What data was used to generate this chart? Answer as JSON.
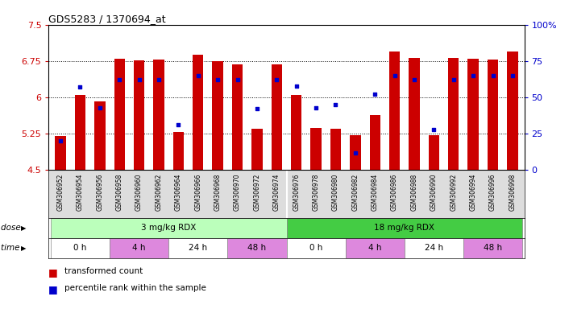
{
  "title": "GDS5283 / 1370694_at",
  "samples": [
    "GSM306952",
    "GSM306954",
    "GSM306956",
    "GSM306958",
    "GSM306960",
    "GSM306962",
    "GSM306964",
    "GSM306966",
    "GSM306968",
    "GSM306970",
    "GSM306972",
    "GSM306974",
    "GSM306976",
    "GSM306978",
    "GSM306980",
    "GSM306982",
    "GSM306984",
    "GSM306986",
    "GSM306988",
    "GSM306990",
    "GSM306992",
    "GSM306994",
    "GSM306996",
    "GSM306998"
  ],
  "red_values": [
    5.2,
    6.05,
    5.92,
    6.8,
    6.77,
    6.78,
    5.28,
    6.88,
    6.75,
    6.68,
    5.35,
    6.68,
    6.05,
    5.37,
    5.35,
    5.21,
    5.63,
    6.95,
    6.82,
    5.22,
    6.82,
    6.8,
    6.78,
    6.95
  ],
  "blue_values_pct": [
    20,
    57,
    43,
    62,
    62,
    62,
    31,
    65,
    62,
    62,
    42,
    62,
    58,
    43,
    45,
    12,
    52,
    65,
    62,
    28,
    62,
    65,
    65,
    65
  ],
  "ymin": 4.5,
  "ymax": 7.5,
  "yticks": [
    4.5,
    5.25,
    6.0,
    6.75,
    7.5
  ],
  "ytick_labels": [
    "4.5",
    "5.25",
    "6",
    "6.75",
    "7.5"
  ],
  "right_yticks": [
    0,
    25,
    50,
    75,
    100
  ],
  "right_ytick_labels": [
    "0",
    "25",
    "50",
    "75",
    "100%"
  ],
  "bar_color": "#cc0000",
  "blue_color": "#0000cc",
  "dose_groups": [
    {
      "label": "3 mg/kg RDX",
      "start": 0,
      "end": 12,
      "color": "#bbffbb"
    },
    {
      "label": "18 mg/kg RDX",
      "start": 12,
      "end": 24,
      "color": "#44cc44"
    }
  ],
  "time_groups": [
    {
      "label": "0 h",
      "start": 0,
      "end": 3,
      "color": "#ffffff"
    },
    {
      "label": "4 h",
      "start": 3,
      "end": 6,
      "color": "#dd88dd"
    },
    {
      "label": "24 h",
      "start": 6,
      "end": 9,
      "color": "#ffffff"
    },
    {
      "label": "48 h",
      "start": 9,
      "end": 12,
      "color": "#dd88dd"
    },
    {
      "label": "0 h",
      "start": 12,
      "end": 15,
      "color": "#ffffff"
    },
    {
      "label": "4 h",
      "start": 15,
      "end": 18,
      "color": "#dd88dd"
    },
    {
      "label": "24 h",
      "start": 18,
      "end": 21,
      "color": "#ffffff"
    },
    {
      "label": "48 h",
      "start": 21,
      "end": 24,
      "color": "#dd88dd"
    }
  ],
  "dose_label": "dose",
  "time_label": "time",
  "legend_items": [
    {
      "label": "transformed count",
      "color": "#cc0000"
    },
    {
      "label": "percentile rank within the sample",
      "color": "#0000cc"
    }
  ]
}
